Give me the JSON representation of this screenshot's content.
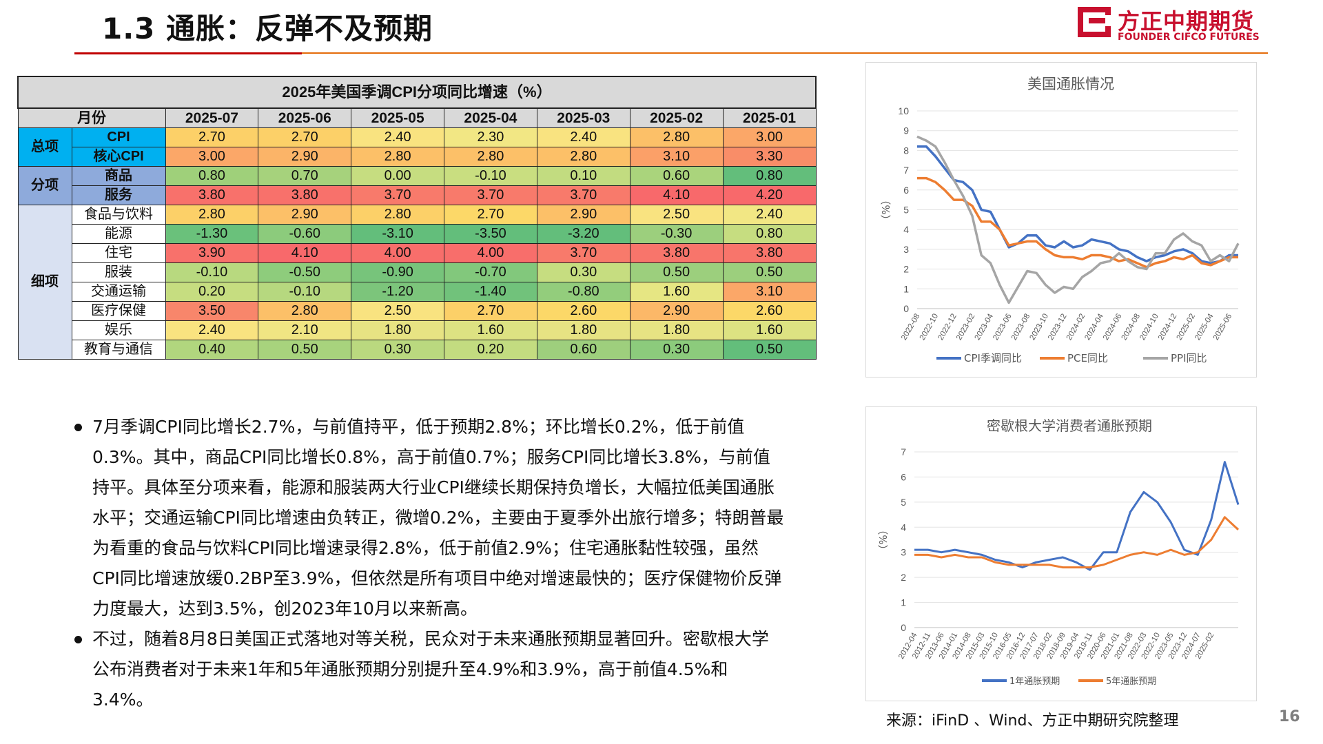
{
  "header": {
    "title": "1.3  通胀：反弹不及预期",
    "logo_cn": "方正中期期货",
    "logo_en": "FOUNDER CIFCO FUTURES",
    "brand_red": "#c8102e",
    "rule_orange": "#e46c0a"
  },
  "table": {
    "title": "2025年美国季调CPI分项同比增速（%）",
    "month_label": "月份",
    "months": [
      "2025-07",
      "2025-06",
      "2025-05",
      "2025-04",
      "2025-03",
      "2025-02",
      "2025-01"
    ],
    "groups": [
      {
        "label": "总项",
        "color": "#00b0f0",
        "rows": [
          {
            "item": "CPI",
            "values": [
              "2.70",
              "2.70",
              "2.40",
              "2.30",
              "2.40",
              "2.80",
              "3.00"
            ],
            "colors": [
              "#fcd068",
              "#fcd068",
              "#f9e380",
              "#f2e784",
              "#f9e380",
              "#fcc068",
              "#fba768"
            ]
          },
          {
            "item": "核心CPI",
            "values": [
              "3.00",
              "2.90",
              "2.80",
              "2.80",
              "2.80",
              "3.10",
              "3.30"
            ],
            "colors": [
              "#fba768",
              "#fbb468",
              "#fcc068",
              "#fcc068",
              "#fcc068",
              "#fba068",
              "#f98d68"
            ]
          }
        ]
      },
      {
        "label": "分项",
        "color": "#8eaadb",
        "rows": [
          {
            "item": "商品",
            "values": [
              "0.80",
              "0.70",
              "0.00",
              "-0.10",
              "0.10",
              "0.60",
              "0.80"
            ],
            "colors": [
              "#9fd07a",
              "#a6d27c",
              "#c6dd80",
              "#c9de80",
              "#c2dc80",
              "#aad47c",
              "#63be7b"
            ]
          },
          {
            "item": "服务",
            "values": [
              "3.80",
              "3.80",
              "3.70",
              "3.70",
              "3.70",
              "4.10",
              "4.20"
            ],
            "colors": [
              "#f8716b",
              "#f8716b",
              "#f87a6b",
              "#f87a6b",
              "#f87a6b",
              "#f8696b",
              "#f8696b"
            ]
          }
        ]
      },
      {
        "label": "细项",
        "color": "#d9e1f2",
        "rows": [
          {
            "item": "食品与饮料",
            "values": [
              "2.80",
              "2.90",
              "2.80",
              "2.70",
              "2.90",
              "2.50",
              "2.40"
            ],
            "colors": [
              "#fcd068",
              "#fcc068",
              "#fcd068",
              "#fcd868",
              "#fcc068",
              "#f9e380",
              "#f2e784"
            ]
          },
          {
            "item": "能源",
            "values": [
              "-1.30",
              "-0.60",
              "-3.10",
              "-3.50",
              "-3.20",
              "-0.30",
              "0.80"
            ],
            "colors": [
              "#6ac17b",
              "#8ccb7c",
              "#63be7b",
              "#63be7b",
              "#63be7b",
              "#9ccf7d",
              "#c6dd80"
            ]
          },
          {
            "item": "住宅",
            "values": [
              "3.90",
              "4.10",
              "4.00",
              "4.00",
              "3.70",
              "3.80",
              "3.80"
            ],
            "colors": [
              "#f8716b",
              "#f8696b",
              "#f86e6b",
              "#f86e6b",
              "#f87a6b",
              "#f8756b",
              "#f8756b"
            ]
          },
          {
            "item": "服装",
            "values": [
              "-0.10",
              "-0.50",
              "-0.90",
              "-0.70",
              "0.30",
              "0.50",
              "0.50"
            ],
            "colors": [
              "#b8d97f",
              "#8ecc7c",
              "#77c47b",
              "#82c87c",
              "#c6dd80",
              "#9ccf7d",
              "#9ccf7d"
            ]
          },
          {
            "item": "交通运输",
            "values": [
              "0.20",
              "-0.10",
              "-1.20",
              "-1.40",
              "-0.80",
              "1.60",
              "3.10"
            ],
            "colors": [
              "#c6dd80",
              "#b6d87f",
              "#7cc57b",
              "#71c27b",
              "#93cd7c",
              "#e6e683",
              "#fba768"
            ]
          },
          {
            "item": "医疗保健",
            "values": [
              "3.50",
              "2.80",
              "2.50",
              "2.70",
              "2.60",
              "2.90",
              "2.60"
            ],
            "colors": [
              "#f8866b",
              "#fcc068",
              "#f9e380",
              "#fcd068",
              "#fcd868",
              "#fcb868",
              "#fcd868"
            ]
          },
          {
            "item": "娱乐",
            "values": [
              "2.40",
              "2.10",
              "1.80",
              "1.60",
              "1.80",
              "1.80",
              "1.60"
            ],
            "colors": [
              "#f9e380",
              "#f0e583",
              "#e7e383",
              "#dde282",
              "#e7e383",
              "#e7e383",
              "#dde282"
            ]
          },
          {
            "item": "教育与通信",
            "values": [
              "0.40",
              "0.50",
              "0.30",
              "0.20",
              "0.60",
              "0.30",
              "0.50"
            ],
            "colors": [
              "#b1d67e",
              "#a8d37d",
              "#bad97f",
              "#c3dc80",
              "#9ecf7d",
              "#8ccb7c",
              "#63be7b"
            ]
          }
        ]
      }
    ]
  },
  "bullets": [
    "7月季调CPI同比增长2.7%，与前值持平，低于预期2.8%；环比增长0.2%，低于前值0.3%。其中，商品CPI同比增长0.8%，高于前值0.7%；服务CPI同比增长3.8%，与前值持平。具体至分项来看，能源和服装两大行业CPI继续长期保持负增长，大幅拉低美国通胀水平；交通运输CPI同比增速由负转正，微增0.2%，主要由于夏季外出旅行增多；特朗普最为看重的食品与饮料CPI同比增速录得2.8%，低于前值2.9%；住宅通胀黏性较强，虽然CPI同比增速放缓0.2BP至3.9%，但依然是所有项目中绝对增速最快的；医疗保健物价反弹力度最大，达到3.5%，创2023年10月以来新高。",
    "不过，随着8月8日美国正式落地对等关税，民众对于未来通胀预期显著回升。密歇根大学公布消费者对于未来1年和5年通胀预期分别提升至4.9%和3.9%，高于前值4.5%和3.4%。"
  ],
  "chart_data": [
    {
      "type": "line",
      "title": "美国通胀情况",
      "ylabel": "（%）",
      "ylim": [
        0,
        10
      ],
      "yticks": [
        "0",
        "1",
        "2",
        "3",
        "4",
        "5",
        "6",
        "7",
        "8",
        "9",
        "10"
      ],
      "x_tick_labels": [
        "2022-08",
        "2022-10",
        "2022-12",
        "2023-02",
        "2023-04",
        "2023-06",
        "2023-08",
        "2023-10",
        "2023-12",
        "2024-02",
        "2024-04",
        "2024-06",
        "2024-08",
        "2024-10",
        "2024-12",
        "2025-02",
        "2025-04",
        "2025-06"
      ],
      "x": [
        "2022-08",
        "2022-09",
        "2022-10",
        "2022-11",
        "2022-12",
        "2023-01",
        "2023-02",
        "2023-03",
        "2023-04",
        "2023-05",
        "2023-06",
        "2023-07",
        "2023-08",
        "2023-09",
        "2023-10",
        "2023-11",
        "2023-12",
        "2024-01",
        "2024-02",
        "2024-03",
        "2024-04",
        "2024-05",
        "2024-06",
        "2024-07",
        "2024-08",
        "2024-09",
        "2024-10",
        "2024-11",
        "2024-12",
        "2025-01",
        "2025-02",
        "2025-03",
        "2025-04",
        "2025-05",
        "2025-06",
        "2025-07"
      ],
      "series": [
        {
          "name": "CPI季调同比",
          "color": "#4472c4",
          "values": [
            8.2,
            8.2,
            7.7,
            7.1,
            6.5,
            6.4,
            6.0,
            5.0,
            4.9,
            4.0,
            3.1,
            3.3,
            3.7,
            3.7,
            3.2,
            3.1,
            3.4,
            3.1,
            3.2,
            3.5,
            3.4,
            3.3,
            3.0,
            2.9,
            2.6,
            2.4,
            2.6,
            2.7,
            2.9,
            3.0,
            2.8,
            2.4,
            2.3,
            2.4,
            2.7,
            2.7
          ]
        },
        {
          "name": "PCE同比",
          "color": "#ed7d31",
          "values": [
            6.6,
            6.6,
            6.4,
            6.0,
            5.5,
            5.5,
            5.2,
            4.4,
            4.4,
            4.0,
            3.2,
            3.3,
            3.4,
            3.4,
            3.0,
            2.7,
            2.6,
            2.6,
            2.5,
            2.7,
            2.7,
            2.6,
            2.4,
            2.5,
            2.3,
            2.1,
            2.3,
            2.4,
            2.6,
            2.5,
            2.7,
            2.3,
            2.2,
            2.4,
            2.6,
            2.6
          ]
        },
        {
          "name": "PPI同比",
          "color": "#a5a5a5",
          "values": [
            8.7,
            8.5,
            8.2,
            7.4,
            6.5,
            5.7,
            4.7,
            2.7,
            2.3,
            1.2,
            0.3,
            1.1,
            1.9,
            1.8,
            1.2,
            0.8,
            1.1,
            1.0,
            1.6,
            1.9,
            2.3,
            2.4,
            2.8,
            2.4,
            2.1,
            2.0,
            2.8,
            2.8,
            3.5,
            3.8,
            3.4,
            3.2,
            2.4,
            2.7,
            2.4,
            3.3
          ]
        }
      ]
    },
    {
      "type": "line",
      "title": "密歇根大学消费者通胀预期",
      "ylabel": "（%）",
      "ylim": [
        0,
        7
      ],
      "yticks": [
        "0",
        "1",
        "2",
        "3",
        "4",
        "5",
        "6",
        "7"
      ],
      "x_tick_labels": [
        "2012-04",
        "2012-11",
        "2013-06",
        "2014-01",
        "2014-08",
        "2015-03",
        "2015-10",
        "2016-05",
        "2016-12",
        "2017-07",
        "2018-02",
        "2018-09",
        "2019-04",
        "2019-11",
        "2020-06",
        "2021-01",
        "2021-08",
        "2022-03",
        "2022-10",
        "2023-05",
        "2023-12",
        "2024-07",
        "2025-02"
      ],
      "x": [
        "2012-04",
        "2012-11",
        "2013-06",
        "2014-01",
        "2014-08",
        "2015-03",
        "2015-10",
        "2016-05",
        "2016-12",
        "2017-07",
        "2018-02",
        "2018-09",
        "2019-04",
        "2019-11",
        "2020-06",
        "2021-01",
        "2021-08",
        "2022-03",
        "2022-10",
        "2023-05",
        "2023-12",
        "2024-07",
        "2025-02",
        "2025-05",
        "2025-08"
      ],
      "series": [
        {
          "name": "1年通胀预期",
          "color": "#4472c4",
          "values": [
            3.1,
            3.1,
            3.0,
            3.1,
            3.0,
            2.9,
            2.7,
            2.6,
            2.4,
            2.6,
            2.7,
            2.8,
            2.6,
            2.3,
            3.0,
            3.0,
            4.6,
            5.4,
            5.0,
            4.2,
            3.1,
            2.9,
            4.3,
            6.6,
            4.9
          ]
        },
        {
          "name": "5年通胀预期",
          "color": "#ed7d31",
          "values": [
            2.9,
            2.9,
            2.8,
            2.9,
            2.8,
            2.8,
            2.6,
            2.5,
            2.5,
            2.5,
            2.5,
            2.4,
            2.4,
            2.4,
            2.5,
            2.7,
            2.9,
            3.0,
            2.9,
            3.1,
            2.9,
            3.0,
            3.5,
            4.4,
            3.9
          ]
        }
      ]
    }
  ],
  "source": "来源：iFinD 、Wind、方正中期研究院整理",
  "page_number": "16"
}
